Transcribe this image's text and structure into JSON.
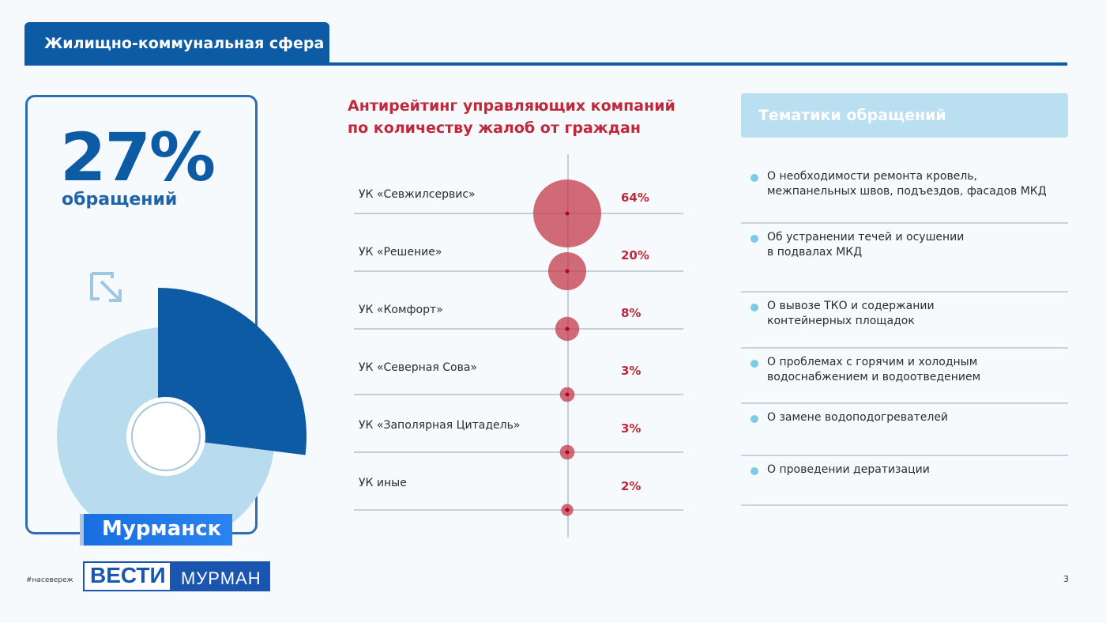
{
  "header": {
    "title": "Жилищно-коммунальная сфера"
  },
  "stat": {
    "value": "27%",
    "label": "обращений",
    "share": 27
  },
  "chart_data": {
    "type": "scatter",
    "title": [
      "Антирейтинг управляющих компаний",
      "по количеству жалоб от граждан"
    ],
    "categories": [
      "УК «Севжилсервис»",
      "УК «Решение»",
      "УК «Комфорт»",
      "УК «Северная Сова»",
      "УК «Заполярная Цитадель»",
      "УК иные"
    ],
    "values": [
      64,
      20,
      8,
      3,
      3,
      2
    ],
    "value_labels": [
      "64%",
      "20%",
      "8%",
      "3%",
      "3%",
      "2%"
    ],
    "unit": "%",
    "colors": {
      "bubble": "#c33a4a",
      "dot": "#b3001e",
      "label": "#c0283b"
    }
  },
  "topics": {
    "header": "Тематики обращений",
    "items": [
      [
        "О необходимости ремонта кровель,",
        "межпанельных швов, подъездов, фасадов МКД"
      ],
      [
        "Об устранении течей и осушении",
        "в подвалах МКД"
      ],
      [
        "О вывозе ТКО и содержании",
        "контейнерных площадок"
      ],
      [
        "О проблемах с горячим и холодным",
        "водоснабжением и водоотведением"
      ],
      [
        "О замене водоподогревателей"
      ],
      [
        "О проведении дератизации"
      ]
    ]
  },
  "footer": {
    "hashtag": "#насевереж",
    "page": "3"
  },
  "overlay": {
    "city": "Мурманск",
    "logo_left": "ВЕСТИ",
    "logo_right": "МУРМАН"
  },
  "colors": {
    "brand_blue": "#0d5ba4",
    "light_blue": "#b9dff0",
    "red": "#c0283b"
  }
}
